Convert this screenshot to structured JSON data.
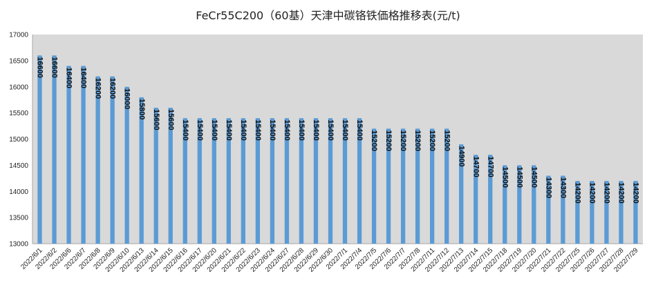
{
  "chart_data": {
    "type": "bar",
    "title": "FeCr55C200（60基）天津中碳铬铁価格推移表(元/t)",
    "xlabel": "",
    "ylabel": "",
    "ylim": [
      13000,
      17000
    ],
    "yticks": [
      13000,
      13500,
      14000,
      14500,
      15000,
      15500,
      16000,
      16500,
      17000
    ],
    "grid": false,
    "legend": "none",
    "colors": {
      "plot_bg": "#d9d9d9",
      "bar": "#5b9bd5",
      "axis": "#a6a6a6"
    },
    "categories": [
      "2022/6/1",
      "2022/6/2",
      "2022/6/6",
      "2022/6/7",
      "2022/6/8",
      "2022/6/9",
      "2022/6/10",
      "2022/6/13",
      "2022/6/14",
      "2022/6/15",
      "2022/6/16",
      "2022/6/17",
      "2022/6/20",
      "2022/6/21",
      "2022/6/22",
      "2022/6/23",
      "2022/6/24",
      "2022/6/27",
      "2022/6/28",
      "2022/6/29",
      "2022/6/30",
      "2022/7/1",
      "2022/7/4",
      "2022/7/5",
      "2022/7/6",
      "2022/7/7",
      "2022/7/8",
      "2022/7/11",
      "2022/7/12",
      "2022/7/13",
      "2022/7/14",
      "2022/7/15",
      "2022/7/18",
      "2022/7/19",
      "2022/7/20",
      "2022/7/21",
      "2022/7/22",
      "2022/7/25",
      "2022/7/26",
      "2022/7/27",
      "2022/7/28",
      "2022/7/29"
    ],
    "values": [
      16600,
      16600,
      16400,
      16400,
      16200,
      16200,
      16000,
      15800,
      15600,
      15600,
      15400,
      15400,
      15400,
      15400,
      15400,
      15400,
      15400,
      15400,
      15400,
      15400,
      15400,
      15400,
      15400,
      15200,
      15200,
      15200,
      15200,
      15200,
      15200,
      14900,
      14700,
      14700,
      14500,
      14500,
      14500,
      14300,
      14300,
      14200,
      14200,
      14200,
      14200,
      14200
    ]
  }
}
